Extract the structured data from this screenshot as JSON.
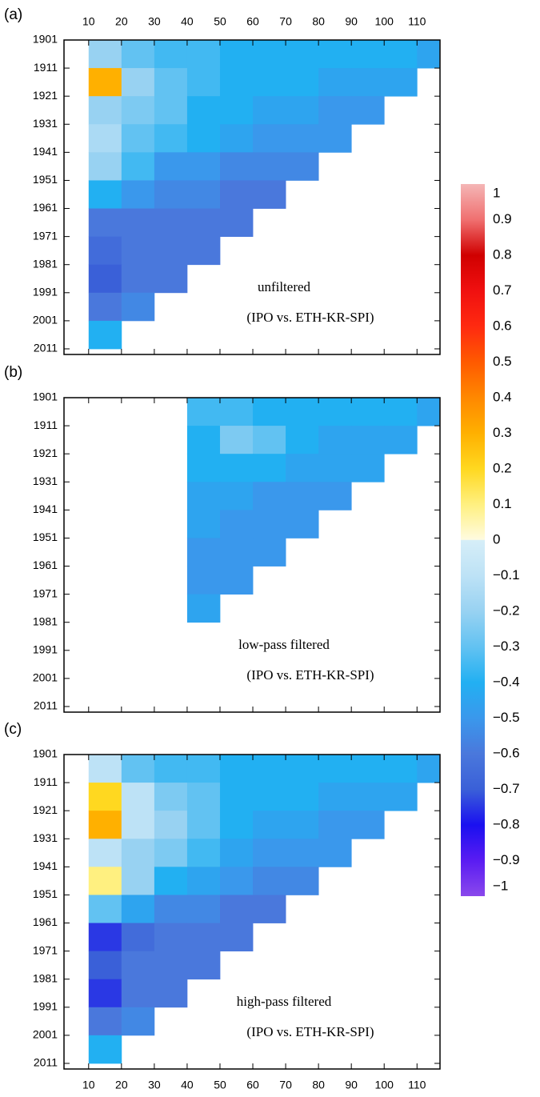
{
  "chart_data": [
    {
      "type": "heatmap",
      "panel_label": "(a)",
      "annotations": [
        "unfiltered",
        "(IPO vs. ETH-KR-SPI)"
      ],
      "x": [
        10,
        20,
        30,
        40,
        50,
        60,
        70,
        80,
        90,
        100,
        110
      ],
      "y": [
        1901,
        1911,
        1921,
        1931,
        1941,
        1951,
        1961,
        1971,
        1981,
        1991,
        2001
      ],
      "values": [
        [
          -0.2,
          -0.3,
          -0.35,
          -0.35,
          -0.4,
          -0.4,
          -0.4,
          -0.4,
          -0.4,
          -0.4,
          -0.45
        ],
        [
          0.3,
          -0.2,
          -0.3,
          -0.35,
          -0.4,
          -0.4,
          -0.4,
          -0.45,
          -0.45,
          -0.45,
          null
        ],
        [
          -0.2,
          -0.25,
          -0.3,
          -0.4,
          -0.4,
          -0.45,
          -0.45,
          -0.5,
          -0.5,
          null,
          null
        ],
        [
          -0.15,
          -0.3,
          -0.35,
          -0.4,
          -0.45,
          -0.5,
          -0.5,
          -0.5,
          null,
          null,
          null
        ],
        [
          -0.2,
          -0.35,
          -0.5,
          -0.5,
          -0.55,
          -0.55,
          -0.55,
          null,
          null,
          null,
          null
        ],
        [
          -0.4,
          -0.5,
          -0.55,
          -0.55,
          -0.6,
          -0.6,
          null,
          null,
          null,
          null,
          null
        ],
        [
          -0.6,
          -0.6,
          -0.6,
          -0.6,
          -0.6,
          null,
          null,
          null,
          null,
          null,
          null
        ],
        [
          -0.65,
          -0.6,
          -0.6,
          -0.6,
          null,
          null,
          null,
          null,
          null,
          null,
          null
        ],
        [
          -0.7,
          -0.6,
          -0.6,
          null,
          null,
          null,
          null,
          null,
          null,
          null,
          null
        ],
        [
          -0.6,
          -0.55,
          null,
          null,
          null,
          null,
          null,
          null,
          null,
          null,
          null
        ],
        [
          -0.4,
          null,
          null,
          null,
          null,
          null,
          null,
          null,
          null,
          null,
          null
        ]
      ],
      "xlim": [
        2.5,
        117
      ],
      "ylim": [
        2013,
        1901
      ],
      "xticks": [
        10,
        20,
        30,
        40,
        50,
        60,
        70,
        80,
        90,
        100,
        110
      ],
      "xtick_labels": "top",
      "yticks": [
        1901,
        1911,
        1921,
        1931,
        1941,
        1951,
        1961,
        1971,
        1981,
        1991,
        2001,
        2011
      ]
    },
    {
      "type": "heatmap",
      "panel_label": "(b)",
      "annotations": [
        "low-pass filtered",
        "(IPO vs. ETH-KR-SPI)"
      ],
      "x": [
        10,
        20,
        30,
        40,
        50,
        60,
        70,
        80,
        90,
        100,
        110
      ],
      "y": [
        1901,
        1911,
        1921,
        1931,
        1941,
        1951,
        1961,
        1971
      ],
      "values": [
        [
          null,
          null,
          null,
          -0.35,
          -0.35,
          -0.4,
          -0.4,
          -0.4,
          -0.4,
          -0.4,
          -0.45
        ],
        [
          null,
          null,
          null,
          -0.4,
          -0.25,
          -0.3,
          -0.4,
          -0.45,
          -0.45,
          -0.45,
          null
        ],
        [
          null,
          null,
          null,
          -0.4,
          -0.4,
          -0.4,
          -0.45,
          -0.45,
          -0.45,
          null,
          null
        ],
        [
          null,
          null,
          null,
          -0.45,
          -0.45,
          -0.5,
          -0.5,
          -0.5,
          null,
          null,
          null
        ],
        [
          null,
          null,
          null,
          -0.45,
          -0.5,
          -0.5,
          -0.5,
          null,
          null,
          null,
          null
        ],
        [
          null,
          null,
          null,
          -0.5,
          -0.5,
          -0.5,
          null,
          null,
          null,
          null,
          null
        ],
        [
          null,
          null,
          null,
          -0.5,
          -0.5,
          null,
          null,
          null,
          null,
          null,
          null
        ],
        [
          null,
          null,
          null,
          -0.45,
          null,
          null,
          null,
          null,
          null,
          null,
          null
        ]
      ],
      "xlim": [
        2.5,
        117
      ],
      "ylim": [
        2013,
        1901
      ],
      "xticks": [
        10,
        20,
        30,
        40,
        50,
        60,
        70,
        80,
        90,
        100,
        110
      ],
      "xtick_labels": "none",
      "yticks": [
        1901,
        1911,
        1921,
        1931,
        1941,
        1951,
        1961,
        1971,
        1981,
        1991,
        2001,
        2011
      ]
    },
    {
      "type": "heatmap",
      "panel_label": "(c)",
      "annotations": [
        "high-pass filtered",
        "(IPO vs. ETH-KR-SPI)"
      ],
      "x": [
        10,
        20,
        30,
        40,
        50,
        60,
        70,
        80,
        90,
        100,
        110
      ],
      "y": [
        1901,
        1911,
        1921,
        1931,
        1941,
        1951,
        1961,
        1971,
        1981,
        1991,
        2001
      ],
      "values": [
        [
          -0.1,
          -0.3,
          -0.35,
          -0.35,
          -0.4,
          -0.4,
          -0.4,
          -0.4,
          -0.4,
          -0.4,
          -0.45
        ],
        [
          0.2,
          -0.1,
          -0.25,
          -0.3,
          -0.4,
          -0.4,
          -0.4,
          -0.45,
          -0.45,
          -0.45,
          null
        ],
        [
          0.3,
          -0.1,
          -0.2,
          -0.3,
          -0.4,
          -0.45,
          -0.45,
          -0.5,
          -0.5,
          null,
          null
        ],
        [
          -0.1,
          -0.2,
          -0.25,
          -0.35,
          -0.45,
          -0.5,
          -0.5,
          -0.5,
          null,
          null,
          null
        ],
        [
          0.1,
          -0.2,
          -0.4,
          -0.45,
          -0.5,
          -0.55,
          -0.55,
          null,
          null,
          null,
          null
        ],
        [
          -0.3,
          -0.45,
          -0.55,
          -0.55,
          -0.6,
          -0.6,
          null,
          null,
          null,
          null,
          null
        ],
        [
          -0.75,
          -0.65,
          -0.6,
          -0.6,
          -0.6,
          null,
          null,
          null,
          null,
          null,
          null
        ],
        [
          -0.7,
          -0.6,
          -0.6,
          -0.6,
          null,
          null,
          null,
          null,
          null,
          null,
          null
        ],
        [
          -0.75,
          -0.6,
          -0.6,
          null,
          null,
          null,
          null,
          null,
          null,
          null,
          null
        ],
        [
          -0.6,
          -0.55,
          null,
          null,
          null,
          null,
          null,
          null,
          null,
          null,
          null
        ],
        [
          -0.4,
          null,
          null,
          null,
          null,
          null,
          null,
          null,
          null,
          null,
          null
        ]
      ],
      "xlim": [
        2.5,
        117
      ],
      "ylim": [
        2013,
        1901
      ],
      "xticks": [
        10,
        20,
        30,
        40,
        50,
        60,
        70,
        80,
        90,
        100,
        110
      ],
      "xtick_labels": "bottom",
      "yticks": [
        1901,
        1911,
        1921,
        1931,
        1941,
        1951,
        1961,
        1971,
        1981,
        1991,
        2001,
        2011
      ]
    },
    {
      "type": "colorbar",
      "lim": [
        -1,
        1
      ],
      "ticks": [
        1,
        0.9,
        0.8,
        0.7,
        0.6,
        0.5,
        0.4,
        0.3,
        0.2,
        0.1,
        0,
        {
          "value": -0.1,
          "label": "−0.1"
        },
        {
          "value": -0.2,
          "label": "−0.2"
        },
        {
          "value": -0.3,
          "label": "−0.3"
        },
        {
          "value": -0.4,
          "label": "−0.4"
        },
        {
          "value": -0.5,
          "label": "−0.5"
        },
        {
          "value": -0.6,
          "label": "−0.6"
        },
        {
          "value": -0.7,
          "label": "−0.7"
        },
        {
          "value": -0.8,
          "label": "−0.8"
        },
        {
          "value": -0.9,
          "label": "−0.9"
        },
        {
          "value": -1,
          "label": "−1"
        }
      ],
      "stops": [
        [
          -1,
          "#8a48ec"
        ],
        [
          -0.9,
          "#5a1cf2"
        ],
        [
          -0.8,
          "#1a10f0"
        ],
        [
          -0.7,
          "#3a60d8"
        ],
        [
          -0.6,
          "#4a78dc"
        ],
        [
          -0.5,
          "#3a98ec"
        ],
        [
          -0.4,
          "#22b0f2"
        ],
        [
          -0.3,
          "#62c2f2"
        ],
        [
          -0.2,
          "#98d2f2"
        ],
        [
          -0.1,
          "#bde2f6"
        ],
        [
          0,
          "#d6eef8"
        ],
        [
          0.001,
          "#fffbe0"
        ],
        [
          0.1,
          "#fff080"
        ],
        [
          0.2,
          "#ffd820"
        ],
        [
          0.3,
          "#ffb000"
        ],
        [
          0.4,
          "#ff8800"
        ],
        [
          0.5,
          "#ff5a00"
        ],
        [
          0.6,
          "#ff2a10"
        ],
        [
          0.7,
          "#f01010"
        ],
        [
          0.8,
          "#d00000"
        ],
        [
          0.9,
          "#f07070"
        ],
        [
          1,
          "#f4b6b6"
        ]
      ]
    }
  ]
}
